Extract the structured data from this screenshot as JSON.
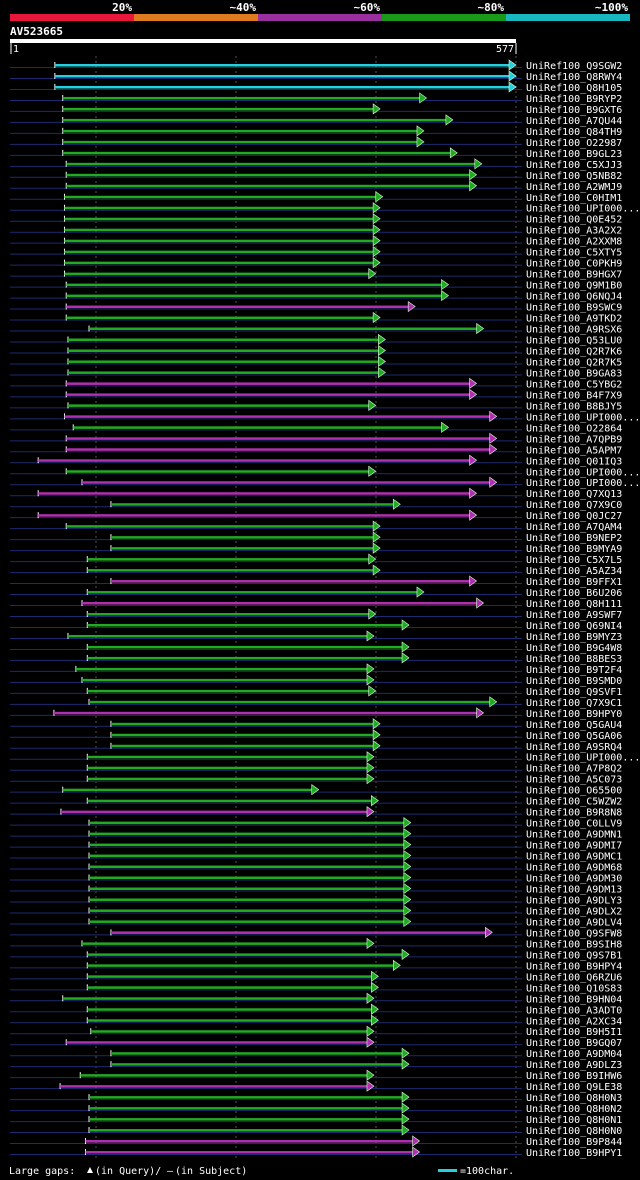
{
  "chart_data": {
    "type": "alignment-overview",
    "query_id": "AV523665",
    "query_start": "1",
    "query_end": "577",
    "query_range": [
      1,
      577
    ],
    "identity_scale": [
      {
        "label": "20%",
        "color": "#e8183c"
      },
      {
        "label": "~40%",
        "color": "#e07a20"
      },
      {
        "label": "~60%",
        "color": "#9a2fa0"
      },
      {
        "label": "~80%",
        "color": "#1a9a1a"
      },
      {
        "label": "~100%",
        "color": "#18b8c0"
      }
    ],
    "hit_colors": {
      "cyan": "#22d0e0",
      "green": "#22aa22",
      "magenta": "#b030b0"
    },
    "hits": [
      {
        "id": "UniRef100_Q9SGW2",
        "start": 51,
        "end": 577,
        "c": "cyan"
      },
      {
        "id": "UniRef100_Q8RWY4",
        "start": 51,
        "end": 577,
        "c": "cyan"
      },
      {
        "id": "UniRef100_Q8H105",
        "start": 51,
        "end": 577,
        "c": "cyan"
      },
      {
        "id": "UniRef100_B9RYP2",
        "start": 60,
        "end": 475,
        "c": "green"
      },
      {
        "id": "UniRef100_B9GXT6",
        "start": 60,
        "end": 422,
        "c": "green"
      },
      {
        "id": "UniRef100_A7QU44",
        "start": 60,
        "end": 505,
        "c": "green"
      },
      {
        "id": "UniRef100_Q84TH9",
        "start": 60,
        "end": 472,
        "c": "green"
      },
      {
        "id": "UniRef100_O22987",
        "start": 60,
        "end": 472,
        "c": "green"
      },
      {
        "id": "UniRef100_B9GL23",
        "start": 60,
        "end": 510,
        "c": "green"
      },
      {
        "id": "UniRef100_C5XJJ3",
        "start": 64,
        "end": 538,
        "c": "green"
      },
      {
        "id": "UniRef100_Q5NB82",
        "start": 64,
        "end": 532,
        "c": "green"
      },
      {
        "id": "UniRef100_A2WMJ9",
        "start": 64,
        "end": 532,
        "c": "green"
      },
      {
        "id": "UniRef100_C0HIM1",
        "start": 62,
        "end": 425,
        "c": "green"
      },
      {
        "id": "UniRef100_UPI000...",
        "start": 62,
        "end": 422,
        "c": "green"
      },
      {
        "id": "UniRef100_Q0E452",
        "start": 62,
        "end": 422,
        "c": "green"
      },
      {
        "id": "UniRef100_A3A2X2",
        "start": 62,
        "end": 422,
        "c": "green"
      },
      {
        "id": "UniRef100_A2XXM8",
        "start": 62,
        "end": 422,
        "c": "green"
      },
      {
        "id": "UniRef100_C5XTY5",
        "start": 62,
        "end": 422,
        "c": "green"
      },
      {
        "id": "UniRef100_C0PKH9",
        "start": 62,
        "end": 422,
        "c": "green"
      },
      {
        "id": "UniRef100_B9HGX7",
        "start": 62,
        "end": 417,
        "c": "green"
      },
      {
        "id": "UniRef100_Q9M1B0",
        "start": 64,
        "end": 500,
        "c": "green"
      },
      {
        "id": "UniRef100_Q6NQJ4",
        "start": 64,
        "end": 500,
        "c": "green"
      },
      {
        "id": "UniRef100_B9SWC9",
        "start": 64,
        "end": 462,
        "c": "magenta"
      },
      {
        "id": "UniRef100_A9TKD2",
        "start": 64,
        "end": 422,
        "c": "green"
      },
      {
        "id": "UniRef100_A9RSX6",
        "start": 90,
        "end": 540,
        "c": "green"
      },
      {
        "id": "UniRef100_Q53LU0",
        "start": 66,
        "end": 428,
        "c": "green"
      },
      {
        "id": "UniRef100_Q2R7K6",
        "start": 66,
        "end": 428,
        "c": "green"
      },
      {
        "id": "UniRef100_Q2R7K5",
        "start": 66,
        "end": 428,
        "c": "green"
      },
      {
        "id": "UniRef100_B9GA83",
        "start": 66,
        "end": 428,
        "c": "green"
      },
      {
        "id": "UniRef100_C5YBG2",
        "start": 64,
        "end": 532,
        "c": "magenta"
      },
      {
        "id": "UniRef100_B4F7X9",
        "start": 64,
        "end": 532,
        "c": "magenta"
      },
      {
        "id": "UniRef100_B8BJY5",
        "start": 66,
        "end": 417,
        "c": "green"
      },
      {
        "id": "UniRef100_UPI000...",
        "start": 62,
        "end": 555,
        "c": "magenta"
      },
      {
        "id": "UniRef100_O22864",
        "start": 72,
        "end": 500,
        "c": "green"
      },
      {
        "id": "UniRef100_A7QPB9",
        "start": 64,
        "end": 555,
        "c": "magenta"
      },
      {
        "id": "UniRef100_A5APM7",
        "start": 64,
        "end": 555,
        "c": "magenta"
      },
      {
        "id": "UniRef100_Q01IQ3",
        "start": 32,
        "end": 532,
        "c": "magenta"
      },
      {
        "id": "UniRef100_UPI000...",
        "start": 64,
        "end": 417,
        "c": "green"
      },
      {
        "id": "UniRef100_UPI000...",
        "start": 82,
        "end": 555,
        "c": "magenta"
      },
      {
        "id": "UniRef100_Q7XQ13",
        "start": 32,
        "end": 532,
        "c": "magenta"
      },
      {
        "id": "UniRef100_Q7X9C0",
        "start": 115,
        "end": 445,
        "c": "green"
      },
      {
        "id": "UniRef100_Q0JC27",
        "start": 32,
        "end": 532,
        "c": "magenta"
      },
      {
        "id": "UniRef100_A7QAM4",
        "start": 64,
        "end": 422,
        "c": "green"
      },
      {
        "id": "UniRef100_B9NEP2",
        "start": 115,
        "end": 422,
        "c": "green"
      },
      {
        "id": "UniRef100_B9MYA9",
        "start": 115,
        "end": 422,
        "c": "green"
      },
      {
        "id": "UniRef100_C5X7L5",
        "start": 88,
        "end": 417,
        "c": "green"
      },
      {
        "id": "UniRef100_A5AZ34",
        "start": 88,
        "end": 422,
        "c": "green"
      },
      {
        "id": "UniRef100_B9FFX1",
        "start": 115,
        "end": 532,
        "c": "magenta"
      },
      {
        "id": "UniRef100_B6U206",
        "start": 88,
        "end": 472,
        "c": "green"
      },
      {
        "id": "UniRef100_Q8H111",
        "start": 82,
        "end": 540,
        "c": "magenta"
      },
      {
        "id": "UniRef100_A9SWF7",
        "start": 88,
        "end": 417,
        "c": "green"
      },
      {
        "id": "UniRef100_Q69NI4",
        "start": 88,
        "end": 455,
        "c": "green"
      },
      {
        "id": "UniRef100_B9MYZ3",
        "start": 66,
        "end": 415,
        "c": "green"
      },
      {
        "id": "UniRef100_B9G4W8",
        "start": 88,
        "end": 455,
        "c": "green"
      },
      {
        "id": "UniRef100_B8BES3",
        "start": 88,
        "end": 455,
        "c": "green"
      },
      {
        "id": "UniRef100_B9T2F4",
        "start": 75,
        "end": 415,
        "c": "green"
      },
      {
        "id": "UniRef100_B9SMD0",
        "start": 82,
        "end": 415,
        "c": "green"
      },
      {
        "id": "UniRef100_Q9SVF1",
        "start": 88,
        "end": 417,
        "c": "green"
      },
      {
        "id": "UniRef100_Q7X9C1",
        "start": 90,
        "end": 555,
        "c": "green"
      },
      {
        "id": "UniRef100_B9HPY0",
        "start": 50,
        "end": 540,
        "c": "magenta"
      },
      {
        "id": "UniRef100_Q5GAU4",
        "start": 115,
        "end": 422,
        "c": "green"
      },
      {
        "id": "UniRef100_Q5GA06",
        "start": 115,
        "end": 422,
        "c": "green"
      },
      {
        "id": "UniRef100_A9SRQ4",
        "start": 115,
        "end": 422,
        "c": "green"
      },
      {
        "id": "UniRef100_UPI000...",
        "start": 88,
        "end": 415,
        "c": "green"
      },
      {
        "id": "UniRef100_A7P8Q2",
        "start": 88,
        "end": 415,
        "c": "green"
      },
      {
        "id": "UniRef100_A5C073",
        "start": 88,
        "end": 415,
        "c": "green"
      },
      {
        "id": "UniRef100_O65500",
        "start": 60,
        "end": 352,
        "c": "green"
      },
      {
        "id": "UniRef100_C5WZW2",
        "start": 88,
        "end": 420,
        "c": "green"
      },
      {
        "id": "UniRef100_B9R8N8",
        "start": 58,
        "end": 415,
        "c": "magenta"
      },
      {
        "id": "UniRef100_C0LLV9",
        "start": 90,
        "end": 457,
        "c": "green"
      },
      {
        "id": "UniRef100_A9DMN1",
        "start": 90,
        "end": 457,
        "c": "green"
      },
      {
        "id": "UniRef100_A9DMI7",
        "start": 90,
        "end": 457,
        "c": "green"
      },
      {
        "id": "UniRef100_A9DMC1",
        "start": 90,
        "end": 457,
        "c": "green"
      },
      {
        "id": "UniRef100_A9DM68",
        "start": 90,
        "end": 457,
        "c": "green"
      },
      {
        "id": "UniRef100_A9DM30",
        "start": 90,
        "end": 457,
        "c": "green"
      },
      {
        "id": "UniRef100_A9DM13",
        "start": 90,
        "end": 457,
        "c": "green"
      },
      {
        "id": "UniRef100_A9DLY3",
        "start": 90,
        "end": 457,
        "c": "green"
      },
      {
        "id": "UniRef100_A9DLX2",
        "start": 90,
        "end": 457,
        "c": "green"
      },
      {
        "id": "UniRef100_A9DLV4",
        "start": 90,
        "end": 457,
        "c": "green"
      },
      {
        "id": "UniRef100_Q9SFW8",
        "start": 115,
        "end": 550,
        "c": "magenta"
      },
      {
        "id": "UniRef100_B9SIH8",
        "start": 82,
        "end": 415,
        "c": "green"
      },
      {
        "id": "UniRef100_Q9S7B1",
        "start": 88,
        "end": 455,
        "c": "green"
      },
      {
        "id": "UniRef100_B9HPY4",
        "start": 88,
        "end": 445,
        "c": "green"
      },
      {
        "id": "UniRef100_Q6RZU6",
        "start": 88,
        "end": 420,
        "c": "green"
      },
      {
        "id": "UniRef100_Q10S83",
        "start": 88,
        "end": 420,
        "c": "green"
      },
      {
        "id": "UniRef100_B9HN04",
        "start": 60,
        "end": 415,
        "c": "green"
      },
      {
        "id": "UniRef100_A3ADT0",
        "start": 88,
        "end": 420,
        "c": "green"
      },
      {
        "id": "UniRef100_A2XC34",
        "start": 88,
        "end": 420,
        "c": "green"
      },
      {
        "id": "UniRef100_B9H5I1",
        "start": 92,
        "end": 415,
        "c": "green"
      },
      {
        "id": "UniRef100_B9GQ07",
        "start": 64,
        "end": 415,
        "c": "magenta"
      },
      {
        "id": "UniRef100_A9DM04",
        "start": 115,
        "end": 455,
        "c": "green"
      },
      {
        "id": "UniRef100_A9DLZ3",
        "start": 115,
        "end": 455,
        "c": "green"
      },
      {
        "id": "UniRef100_B9IHW6",
        "start": 80,
        "end": 415,
        "c": "green"
      },
      {
        "id": "UniRef100_Q9LE38",
        "start": 57,
        "end": 415,
        "c": "magenta"
      },
      {
        "id": "UniRef100_Q8H0N3",
        "start": 90,
        "end": 455,
        "c": "green"
      },
      {
        "id": "UniRef100_Q8H0N2",
        "start": 90,
        "end": 455,
        "c": "green"
      },
      {
        "id": "UniRef100_Q8H0N1",
        "start": 90,
        "end": 455,
        "c": "green"
      },
      {
        "id": "UniRef100_Q8H0N0",
        "start": 90,
        "end": 455,
        "c": "green"
      },
      {
        "id": "UniRef100_B9P844",
        "start": 86,
        "end": 467,
        "c": "magenta"
      },
      {
        "id": "UniRef100_B9HPY1",
        "start": 86,
        "end": 467,
        "c": "magenta"
      }
    ],
    "legend": {
      "gaps_text": "Large gaps:",
      "query_text": "(in Query)/",
      "subject_text": "(in Subject)",
      "scale_text": "=100char."
    }
  }
}
